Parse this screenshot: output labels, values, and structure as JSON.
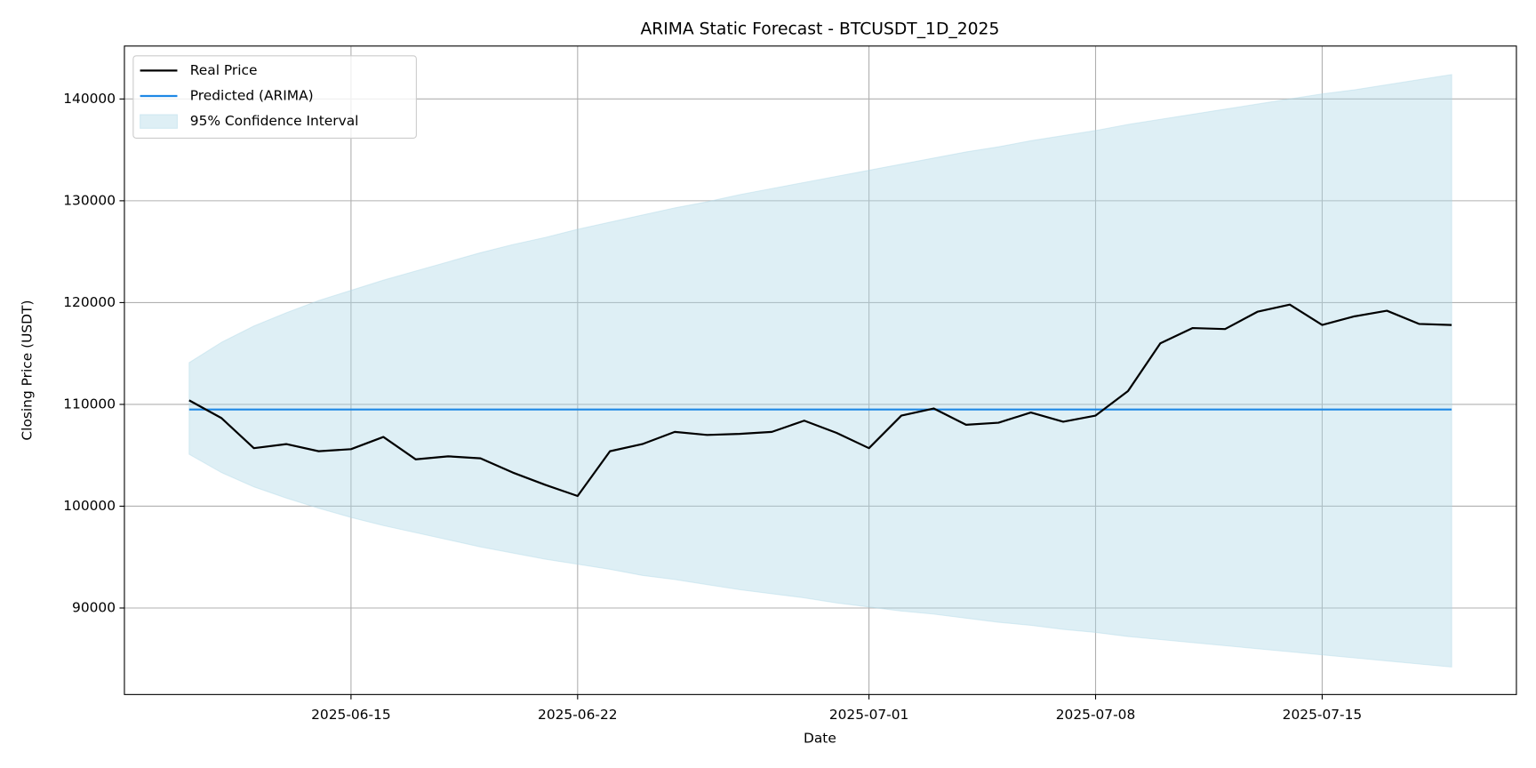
{
  "chart_data": {
    "type": "line",
    "title": "ARIMA Static Forecast - BTCUSDT_1D_2025",
    "x_label": "Date",
    "y_label": "Closing Price (USDT)",
    "x": [
      "2025-06-10",
      "2025-06-11",
      "2025-06-12",
      "2025-06-13",
      "2025-06-14",
      "2025-06-15",
      "2025-06-16",
      "2025-06-17",
      "2025-06-18",
      "2025-06-19",
      "2025-06-20",
      "2025-06-21",
      "2025-06-22",
      "2025-06-23",
      "2025-06-24",
      "2025-06-25",
      "2025-06-26",
      "2025-06-27",
      "2025-06-28",
      "2025-06-29",
      "2025-06-30",
      "2025-07-01",
      "2025-07-02",
      "2025-07-03",
      "2025-07-04",
      "2025-07-05",
      "2025-07-06",
      "2025-07-07",
      "2025-07-08",
      "2025-07-09",
      "2025-07-10",
      "2025-07-11",
      "2025-07-12",
      "2025-07-13",
      "2025-07-14",
      "2025-07-15",
      "2025-07-16",
      "2025-07-17",
      "2025-07-18",
      "2025-07-19"
    ],
    "series": [
      {
        "name": "Real Price",
        "color": "#000000",
        "values": [
          110400,
          108650,
          105700,
          106100,
          105400,
          105600,
          106800,
          104600,
          104900,
          104700,
          103300,
          102100,
          101000,
          105400,
          106100,
          107300,
          107000,
          107100,
          107300,
          108400,
          107200,
          105700,
          108900,
          109600,
          108000,
          108200,
          109200,
          108300,
          108900,
          111300,
          116000,
          117500,
          117400,
          119100,
          119800,
          117800,
          118650,
          119200,
          117900,
          117800
        ]
      },
      {
        "name": "Predicted (ARIMA)",
        "color": "#1e88e5",
        "values": [
          109500,
          109500,
          109500,
          109500,
          109500,
          109500,
          109500,
          109500,
          109500,
          109500,
          109500,
          109500,
          109500,
          109500,
          109500,
          109500,
          109500,
          109500,
          109500,
          109500,
          109500,
          109500,
          109500,
          109500,
          109500,
          109500,
          109500,
          109500,
          109500,
          109500,
          109500,
          109500,
          109500,
          109500,
          109500,
          109500,
          109500,
          109500,
          109500,
          109500
        ]
      }
    ],
    "band": {
      "name": "95% Confidence Interval",
      "color": "#add8e6",
      "opacity": 0.4,
      "upper": [
        114100,
        116100,
        117700,
        119000,
        120200,
        121200,
        122200,
        123100,
        124000,
        124900,
        125700,
        126400,
        127200,
        127900,
        128600,
        129300,
        129900,
        130600,
        131200,
        131800,
        132400,
        133000,
        133600,
        134200,
        134800,
        135300,
        135900,
        136400,
        136900,
        137500,
        138000,
        138500,
        139000,
        139500,
        140000,
        140500,
        140900,
        141400,
        141900,
        142400
      ],
      "lower": [
        105100,
        103300,
        101900,
        100800,
        99800,
        98900,
        98100,
        97400,
        96700,
        96000,
        95400,
        94800,
        94300,
        93800,
        93200,
        92800,
        92300,
        91800,
        91400,
        91000,
        90500,
        90100,
        89700,
        89400,
        89000,
        88600,
        88300,
        87900,
        87600,
        87200,
        86900,
        86600,
        86300,
        86000,
        85700,
        85400,
        85100,
        84800,
        84500,
        84200
      ]
    },
    "xlim": [
      "2025-06-08",
      "2025-07-21"
    ],
    "xticks": [
      "2025-06-15",
      "2025-06-22",
      "2025-07-01",
      "2025-07-08",
      "2025-07-15"
    ],
    "ylim": [
      81500,
      145200
    ],
    "yticks": [
      90000,
      100000,
      110000,
      120000,
      130000,
      140000
    ],
    "grid": true,
    "legend": "upper left"
  }
}
